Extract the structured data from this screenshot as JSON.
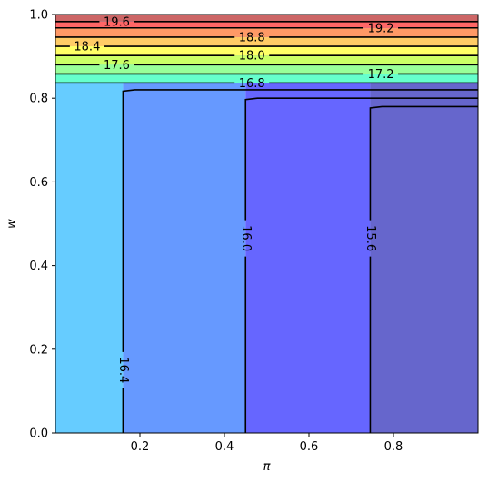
{
  "chart_data": {
    "type": "contour",
    "xlabel": "π",
    "ylabel": "w",
    "xlim": [
      0.0,
      1.0
    ],
    "ylim": [
      0.0,
      1.0
    ],
    "x_ticks": [
      "0.2",
      "0.4",
      "0.6",
      "0.8"
    ],
    "x_tick_values": [
      0.2,
      0.4,
      0.6,
      0.8
    ],
    "y_ticks": [
      "0.0",
      "0.2",
      "0.4",
      "0.6",
      "0.8",
      "1.0"
    ],
    "y_tick_values": [
      0.0,
      0.2,
      0.4,
      0.6,
      0.8,
      1.0
    ],
    "grid": false,
    "vertical_regions": [
      {
        "x0": 0.0,
        "x1": 0.16,
        "color": "#66ccff"
      },
      {
        "x0": 0.16,
        "x1": 0.45,
        "color": "#6699ff"
      },
      {
        "x0": 0.45,
        "x1": 0.745,
        "color": "#6666ff"
      },
      {
        "x0": 0.745,
        "x1": 1.0,
        "color": "#6666cc"
      }
    ],
    "horizontal_bands": [
      {
        "y0": 0.8365,
        "y1": 0.858,
        "color": "#66ffcc"
      },
      {
        "y0": 0.858,
        "y1": 0.88,
        "color": "#99ff99"
      },
      {
        "y0": 0.88,
        "y1": 0.902,
        "color": "#ccff66"
      },
      {
        "y0": 0.902,
        "y1": 0.924,
        "color": "#ffff66"
      },
      {
        "y0": 0.924,
        "y1": 0.946,
        "color": "#ffcc66"
      },
      {
        "y0": 0.946,
        "y1": 0.968,
        "color": "#ff9966"
      },
      {
        "y0": 0.968,
        "y1": 0.983,
        "color": "#ff6666"
      },
      {
        "y0": 0.983,
        "y1": 1.0,
        "color": "#cc6666"
      }
    ],
    "vertical_contours": [
      {
        "level": "16.4",
        "x": 0.16,
        "top": 0.82,
        "label_y": 0.15
      },
      {
        "level": "16.0",
        "x": 0.45,
        "top": 0.8,
        "label_y": 0.465
      },
      {
        "level": "15.6",
        "x": 0.745,
        "top": 0.78,
        "label_y": 0.465
      }
    ],
    "horizontal_contours": [
      {
        "level": "16.8",
        "y": 0.8365,
        "label_x": 0.465
      },
      {
        "level": "17.2",
        "y": 0.858,
        "label_x": 0.77
      },
      {
        "level": "17.6",
        "y": 0.88,
        "label_x": 0.145
      },
      {
        "level": "18.0",
        "y": 0.902,
        "label_x": 0.465
      },
      {
        "level": "18.4",
        "y": 0.924,
        "label_x": 0.075
      },
      {
        "level": "18.8",
        "y": 0.946,
        "label_x": 0.465
      },
      {
        "level": "19.2",
        "y": 0.968,
        "label_x": 0.77
      },
      {
        "level": "19.6",
        "y": 0.983,
        "label_x": 0.145
      }
    ]
  }
}
